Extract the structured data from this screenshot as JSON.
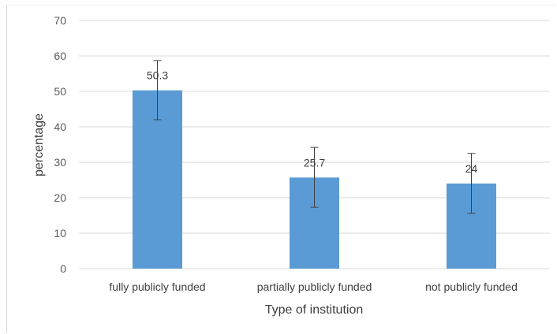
{
  "chart_data": {
    "type": "bar",
    "title": "",
    "xlabel": "Type of institution",
    "ylabel": "percentage",
    "categories": [
      "fully publicly funded",
      "partially publicly funded",
      "not publicly funded"
    ],
    "values": [
      50.3,
      25.7,
      24
    ],
    "value_labels": [
      "50.3",
      "25.7",
      "24"
    ],
    "error_low": [
      42,
      17.3,
      15.6
    ],
    "error_high": [
      58.7,
      34.2,
      32.5
    ],
    "ylim": [
      0,
      70
    ],
    "yticks": [
      "0",
      "10",
      "20",
      "30",
      "40",
      "50",
      "60",
      "70"
    ],
    "grid": true,
    "legend": "none",
    "bar_color": "#5b9bd5",
    "error_bar_color": "#404040",
    "grid_color": "#d9d9d9"
  }
}
